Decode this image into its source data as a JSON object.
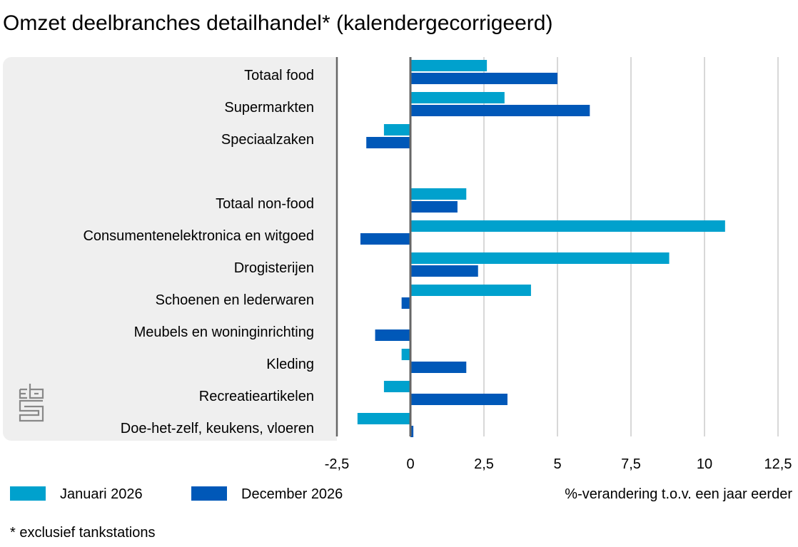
{
  "chart_data": {
    "type": "bar",
    "orientation": "horizontal",
    "title": "Omzet deelbranches detailhandel* (kalendergecorrigeerd)",
    "xlabel": "%-verandering t.o.v. een jaar eerder",
    "footnote": "* exclusief tankstations",
    "xlim": [
      -2.5,
      12.5
    ],
    "xticks": [
      -2.5,
      0,
      2.5,
      5,
      7.5,
      10,
      12.5
    ],
    "xtick_labels": [
      "-2,5",
      "0",
      "2,5",
      "5",
      "7,5",
      "10",
      "12,5"
    ],
    "grid": true,
    "legend_position": "bottom-left",
    "categories": [
      "Totaal food",
      "Supermarkten",
      "Speciaalzaken",
      "",
      "Totaal non-food",
      "Consumentenelektronica en witgoed",
      "Drogisterijen",
      "Schoenen en lederwaren",
      "Meubels en woninginrichting",
      "Kleding",
      "Recreatieartikelen",
      "Doe-het-zelf, keukens, vloeren"
    ],
    "series": [
      {
        "name": "Januari 2026",
        "color": "#00a1cd",
        "values": [
          2.6,
          3.2,
          -0.9,
          null,
          1.9,
          10.7,
          8.8,
          4.1,
          0,
          -0.3,
          -0.9,
          -1.8
        ]
      },
      {
        "name": "December 2026",
        "color": "#0058b8",
        "values": [
          5.0,
          6.1,
          -1.5,
          null,
          1.6,
          -1.7,
          2.3,
          -0.3,
          -1.2,
          1.9,
          3.3,
          0.1
        ]
      }
    ]
  },
  "logo": "cbs"
}
